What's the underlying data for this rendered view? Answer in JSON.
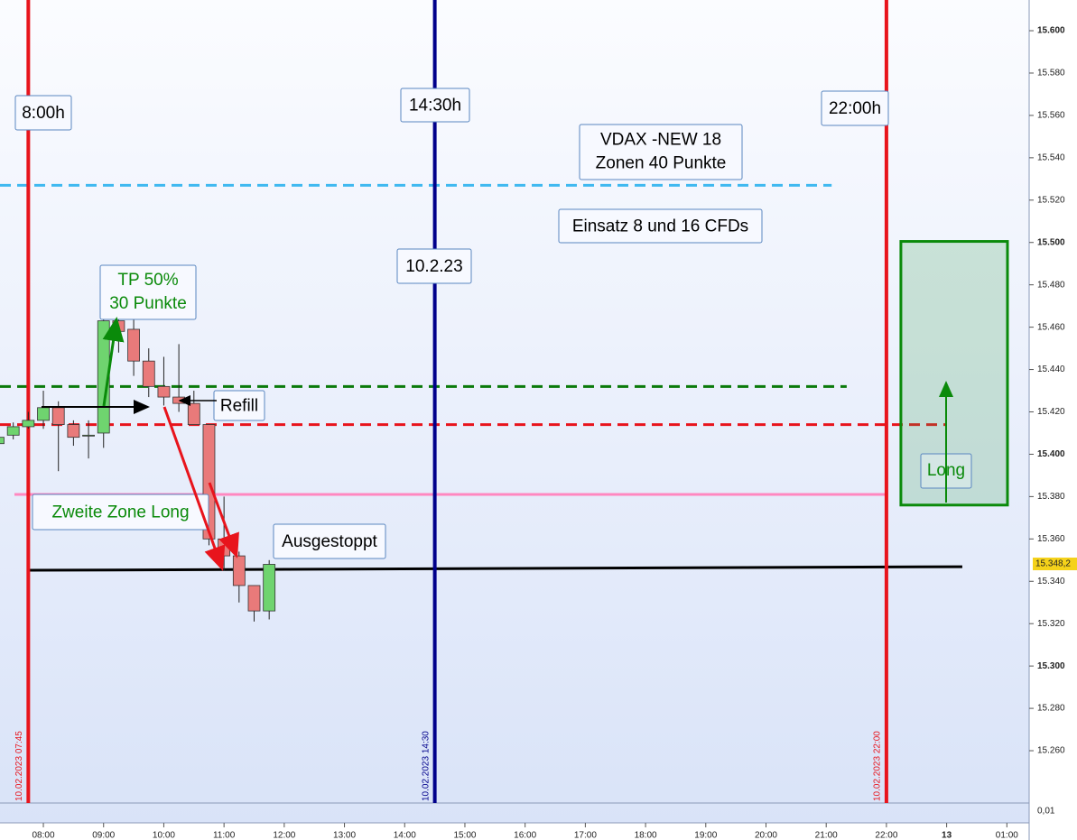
{
  "chart_data": {
    "type": "candlestick",
    "x": [
      7.25,
      7.5,
      7.75,
      8,
      8.25,
      8.5,
      8.75,
      9,
      9.25,
      9.5,
      9.75,
      10,
      10.25,
      10.5,
      10.75,
      11,
      11.25,
      11.5,
      11.75
    ],
    "open": [
      15405,
      15409,
      15413,
      15416,
      15422,
      15414,
      15409,
      15410,
      15463,
      15459,
      15444,
      15432,
      15427,
      15424,
      15414,
      15360,
      15352,
      15338,
      15326
    ],
    "high": [
      15410,
      15415,
      15420,
      15430,
      15425,
      15416,
      15416,
      15467,
      15470,
      15466,
      15450,
      15446,
      15452,
      15430,
      15414,
      15380,
      15354,
      15338,
      15350
    ],
    "low": [
      15404,
      15407,
      15412,
      15412,
      15392,
      15404,
      15398,
      15403,
      15448,
      15437,
      15427,
      15423,
      15420,
      15414,
      15357,
      15345,
      15330,
      15321,
      15322
    ],
    "close": [
      15408,
      15413,
      15416,
      15422,
      15414,
      15408,
      15409,
      15463,
      15458,
      15444,
      15432,
      15427,
      15424,
      15414,
      15360,
      15352,
      15338,
      15326,
      15348
    ],
    "up_color": "#6fd46f",
    "down_color": "#e97a7a",
    "xlim": [
      7.28,
      24.37
    ],
    "ylim": [
      15235.3,
      15614.5
    ],
    "yticks": [
      {
        "value": 15260,
        "label": "15.260"
      },
      {
        "value": 15280,
        "label": "15.280"
      },
      {
        "value": 15300,
        "label": "15.300"
      },
      {
        "value": 15320,
        "label": "15.320"
      },
      {
        "value": 15340,
        "label": "15.340"
      },
      {
        "value": 15360,
        "label": "15.360"
      },
      {
        "value": 15380,
        "label": "15.380"
      },
      {
        "value": 15400,
        "label": "15.400"
      },
      {
        "value": 15420,
        "label": "15.420"
      },
      {
        "value": 15440,
        "label": "15.440"
      },
      {
        "value": 15460,
        "label": "15.460"
      },
      {
        "value": 15480,
        "label": "15.480"
      },
      {
        "value": 15500,
        "label": "15.500"
      },
      {
        "value": 15520,
        "label": "15.520"
      },
      {
        "value": 15540,
        "label": "15.540"
      },
      {
        "value": 15560,
        "label": "15.560"
      },
      {
        "value": 15580,
        "label": "15.580"
      },
      {
        "value": 15600,
        "label": "15.600"
      }
    ],
    "xticks": [
      {
        "value": 8,
        "label": "08:00"
      },
      {
        "value": 9,
        "label": "09:00"
      },
      {
        "value": 10,
        "label": "10:00"
      },
      {
        "value": 11,
        "label": "11:00"
      },
      {
        "value": 12,
        "label": "12:00"
      },
      {
        "value": 13,
        "label": "13:00"
      },
      {
        "value": 14,
        "label": "14:00"
      },
      {
        "value": 15,
        "label": "15:00"
      },
      {
        "value": 16,
        "label": "16:00"
      },
      {
        "value": 17,
        "label": "17:00"
      },
      {
        "value": 18,
        "label": "18:00"
      },
      {
        "value": 19,
        "label": "19:00"
      },
      {
        "value": 20,
        "label": "20:00"
      },
      {
        "value": 21,
        "label": "21:00"
      },
      {
        "value": 22,
        "label": "22:00"
      },
      {
        "value": 23,
        "label": "13"
      },
      {
        "value": 24,
        "label": "01:00"
      }
    ],
    "last_price": {
      "value": 15348.2,
      "label": "15.348,2"
    },
    "lower_pane_label": "0,01",
    "vlines": [
      {
        "x": 7.75,
        "color": "#e8141c",
        "label": "10.02.2023 07:45"
      },
      {
        "x": 14.5,
        "color": "#00008b",
        "label": "10.02.2023 14:30"
      },
      {
        "x": 22,
        "color": "#e8141c",
        "label": "10.02.2023 22:00"
      }
    ],
    "hlines": [
      {
        "y": [
          15527,
          15527
        ],
        "x": [
          7.28,
          21.09
        ],
        "color": "#3fb8f0",
        "dashed": true
      },
      {
        "y": [
          15432,
          15432
        ],
        "x": [
          7.28,
          21.34
        ],
        "color": "#0a7a0a",
        "dashed": true
      },
      {
        "y": [
          15414,
          15414
        ],
        "x": [
          7.28,
          23.0
        ],
        "color": "#e8141c",
        "dashed": true
      },
      {
        "y": [
          15381,
          15381
        ],
        "x": [
          7.52,
          22.02
        ],
        "color": "#ff88c0",
        "dashed": false
      },
      {
        "y": [
          15345.2,
          15346.9
        ],
        "x": [
          7.77,
          23.26
        ],
        "color": "#000000",
        "dashed": false
      }
    ],
    "position_box": {
      "label": "Long",
      "x": [
        22.24,
        24.01
      ],
      "y": [
        15376,
        15500.5
      ],
      "color": "#0a8a0a"
    },
    "annotations": [
      "8:00h",
      "14:30h",
      "22:00h",
      [
        "VDAX -NEW 18",
        "Zonen 40  Punkte"
      ],
      "Einsatz 8 und 16 CFDs",
      "10.2.23",
      [
        "TP 50%",
        "30 Punkte"
      ],
      "Refill",
      "Zweite Zone Long",
      "Ausgestoppt"
    ]
  }
}
